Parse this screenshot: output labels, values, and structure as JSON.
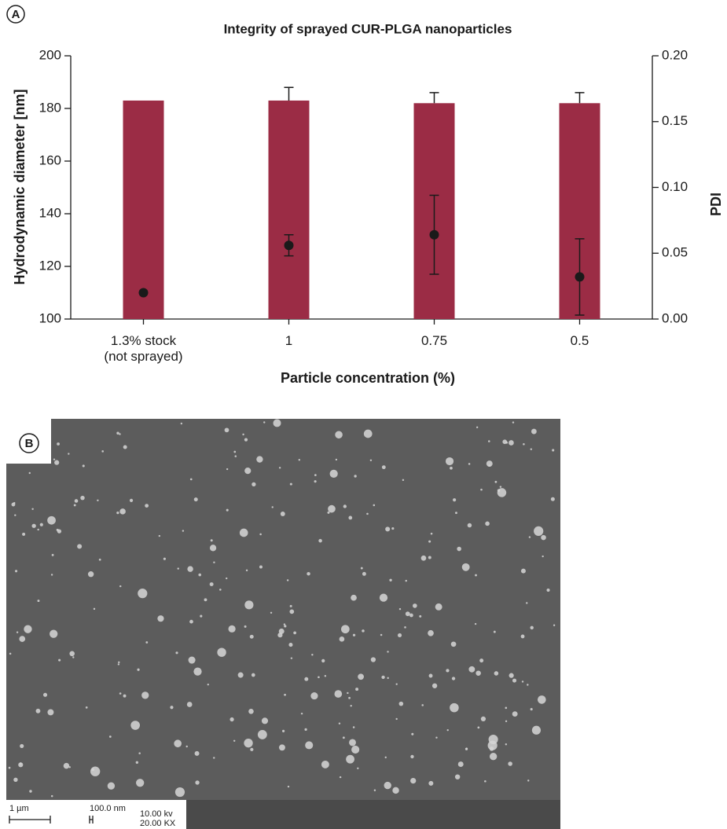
{
  "chart_data": {
    "type": "bar",
    "title": "Integrity of sprayed CUR-PLGA nanoparticles",
    "x_label": "Particle concentration (%)",
    "y_label": "Hydrodynamic diameter [nm]",
    "y2_label": "PDI",
    "categories": [
      "1.3% stock\n(not sprayed)",
      "1",
      "0.75",
      "0.5"
    ],
    "series": [
      {
        "type": "bar",
        "color": "#9b2c45",
        "values": [
          183,
          183,
          182,
          182
        ],
        "errors": [
          null,
          5,
          4,
          4
        ]
      },
      {
        "type": "scatter",
        "axis": "y2",
        "color": "#1a1a1a",
        "values": [
          0.02,
          0.056,
          0.064,
          0.032
        ],
        "errors": [
          null,
          0.008,
          0.03,
          0.029
        ]
      }
    ],
    "ylim": [
      100,
      200
    ],
    "yticks": [
      100,
      120,
      140,
      160,
      180,
      200
    ],
    "y2lim": [
      0,
      0.2
    ],
    "y2ticks": [
      {
        "value": 0,
        "label": "0.00"
      },
      {
        "value": 0.05,
        "label": "0.05"
      },
      {
        "value": 0.1,
        "label": "0.10"
      },
      {
        "value": 0.15,
        "label": "0.15"
      },
      {
        "value": 0.2,
        "label": "0.20"
      }
    ]
  },
  "panels": {
    "a": "A",
    "b": "B"
  },
  "sem_image": {
    "scale_bar": "1 µm",
    "pixel_size": "100.0 nm",
    "voltage": "10.00  kv",
    "magnification": "20.00  KX"
  }
}
